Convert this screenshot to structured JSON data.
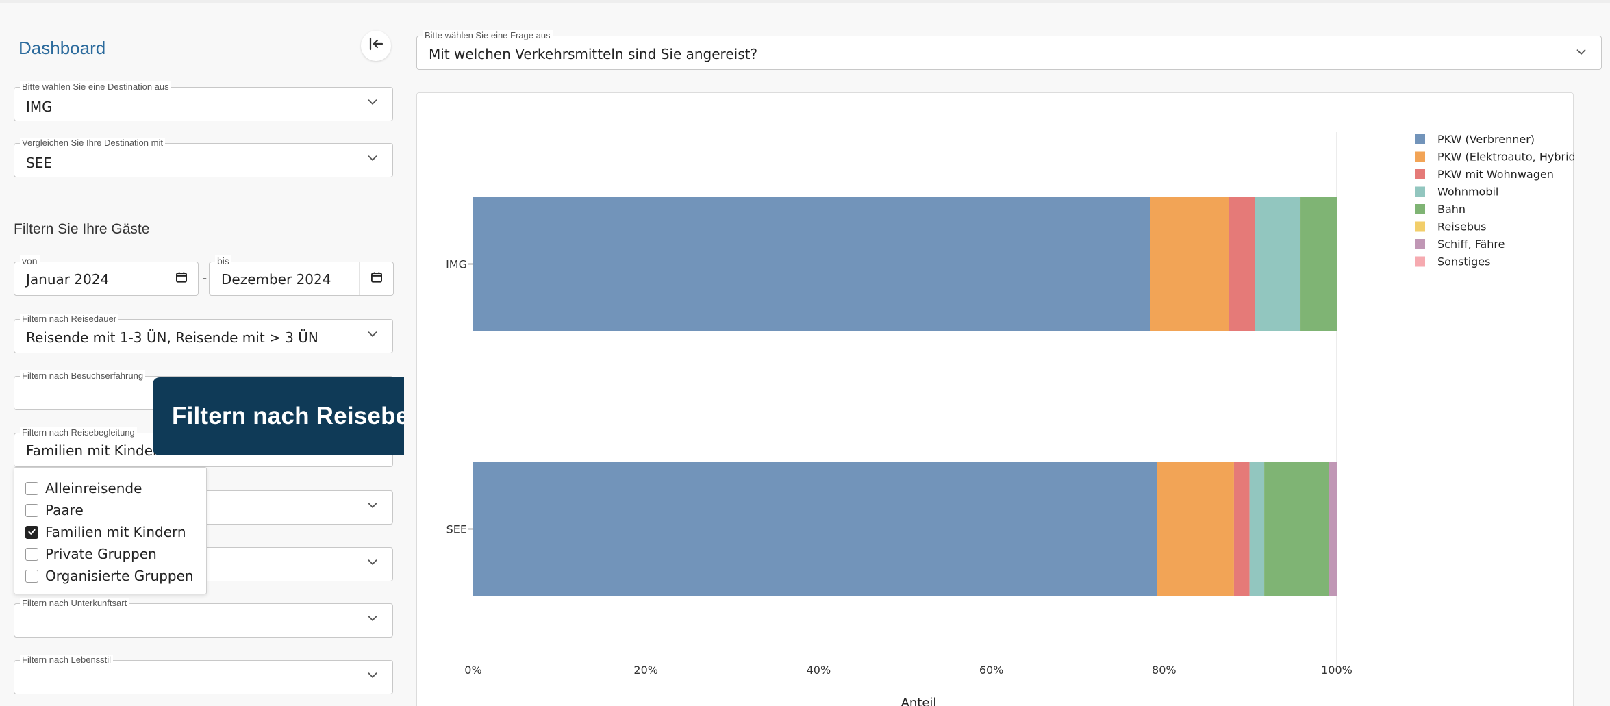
{
  "sidebar": {
    "title": "Dashboard",
    "destination": {
      "label": "Bitte wählen Sie eine Destination aus",
      "value": "IMG"
    },
    "compare": {
      "label": "Vergleichen Sie Ihre Destination mit",
      "value": "SEE"
    },
    "filter_heading": "Filtern Sie Ihre Gäste",
    "date_from": {
      "label": "von",
      "value": "Januar 2024"
    },
    "date_sep": "-",
    "date_to": {
      "label": "bis",
      "value": "Dezember 2024"
    },
    "reisedauer": {
      "label": "Filtern nach Reisedauer",
      "value": "Reisende mit 1-3 ÜN, Reisende mit > 3 ÜN"
    },
    "besuchserfahrung": {
      "label": "Filtern nach Besuchserfahrung",
      "value": ""
    },
    "reisebegleitung": {
      "label": "Filtern nach Reisebegleitung",
      "value": "Familien mit Kindern"
    },
    "unterkunftsart": {
      "label": "Filtern nach Unterkunftsart",
      "value": ""
    },
    "lebensstil": {
      "label": "Filtern nach Lebensstil",
      "value": ""
    },
    "reisebegleitung_options": [
      {
        "label": "Alleinreisende",
        "checked": false
      },
      {
        "label": "Paare",
        "checked": false
      },
      {
        "label": "Familien mit Kindern",
        "checked": true
      },
      {
        "label": "Private Gruppen",
        "checked": false
      },
      {
        "label": "Organisierte Gruppen",
        "checked": false
      }
    ]
  },
  "tooltip": {
    "text": "Filtern nach Reisebegleitung"
  },
  "question": {
    "label": "Bitte wählen Sie eine Frage aus",
    "value": "Mit welchen Verkehrsmitteln sind Sie angereist?"
  },
  "chart_data": {
    "type": "bar",
    "orientation": "horizontal",
    "stacked": true,
    "categories": [
      "IMG",
      "SEE"
    ],
    "series": [
      {
        "name": "PKW (Verbrenner)",
        "color": "#7294ba",
        "values": [
          78.4,
          79.2
        ]
      },
      {
        "name": "PKW (Elektroauto, Hybrid)",
        "color": "#f2a456",
        "values": [
          9.1,
          8.9
        ]
      },
      {
        "name": "PKW mit Wohnwagen",
        "color": "#e57a78",
        "values": [
          3.0,
          1.8
        ]
      },
      {
        "name": "Wohnmobil",
        "color": "#92c6bf",
        "values": [
          5.3,
          1.7
        ]
      },
      {
        "name": "Bahn",
        "color": "#7fb474",
        "values": [
          4.2,
          7.5
        ]
      },
      {
        "name": "Reisebus",
        "color": "#f2ce6a",
        "values": [
          0.0,
          0.0
        ]
      },
      {
        "name": "Schiff, Fähre",
        "color": "#c097b5",
        "values": [
          0.0,
          0.9
        ]
      },
      {
        "name": "Sonstiges",
        "color": "#f6aab0",
        "values": [
          0.0,
          0.0
        ]
      }
    ],
    "xlabel": "Anteil",
    "ylabel": "",
    "xlim": [
      0,
      100
    ],
    "xticks": [
      "0%",
      "20%",
      "40%",
      "60%",
      "80%",
      "100%"
    ],
    "grid": false,
    "legend": "top-right"
  }
}
